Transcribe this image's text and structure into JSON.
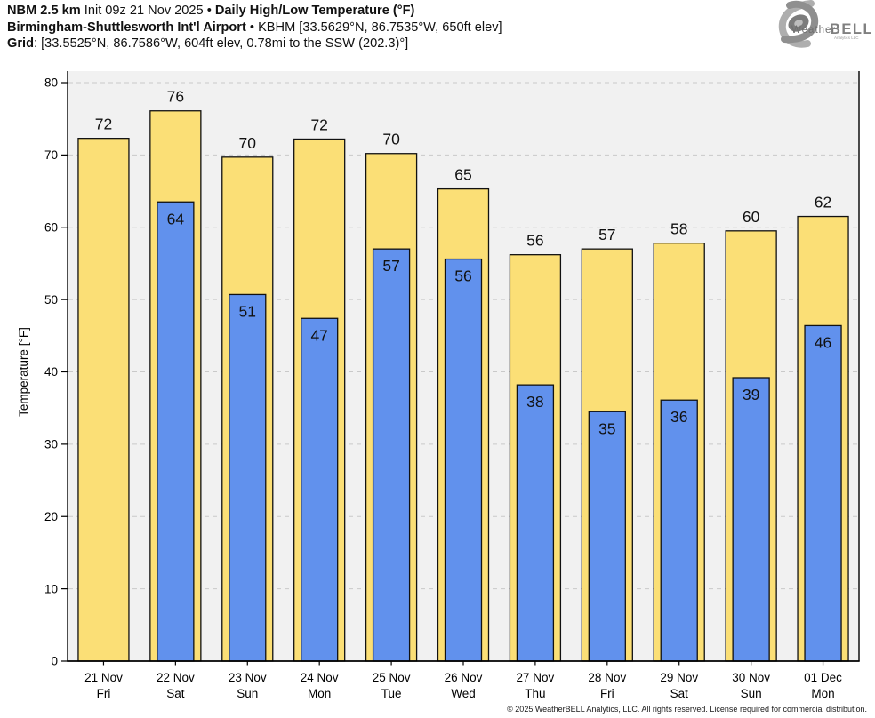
{
  "header": {
    "line1": {
      "model": "NBM 2.5 km",
      "init": " Init 09z 21 Nov 2025 • ",
      "title": "Daily High/Low Temperature (°F)"
    },
    "line2": {
      "station": "Birmingham-Shuttlesworth Int'l Airport",
      "sep": " • ",
      "details": "KBHM [33.5629°N, 86.7535°W, 650ft elev]"
    },
    "line3": {
      "label": "Grid",
      "details": ": [33.5525°N, 86.7586°W, 604ft elev, 0.78mi to the SSW (202.3)°]"
    }
  },
  "logo": {
    "weather": "Weather",
    "bell": "BELL",
    "sub": "Analytics LLC"
  },
  "footer": {
    "copyright": "© 2025 WeatherBELL Analytics, LLC. All rights reserved. License required for commercial distribution."
  },
  "chart_data": {
    "type": "bar",
    "title": "Daily High/Low Temperature (°F)",
    "xlabel": "",
    "ylabel": "Temperature [°F]",
    "ylim": [
      0,
      80
    ],
    "yticks": [
      0,
      10,
      20,
      30,
      40,
      50,
      60,
      70,
      80
    ],
    "grid": "horizontal-dashed",
    "legend": "none",
    "plot_bg": "#f1f1f1",
    "grid_color": "#c9c9c9",
    "bar_edge_color": "#111111",
    "categories": [
      {
        "date": "21 Nov",
        "day": "Fri"
      },
      {
        "date": "22 Nov",
        "day": "Sat"
      },
      {
        "date": "23 Nov",
        "day": "Sun"
      },
      {
        "date": "24 Nov",
        "day": "Mon"
      },
      {
        "date": "25 Nov",
        "day": "Tue"
      },
      {
        "date": "26 Nov",
        "day": "Wed"
      },
      {
        "date": "27 Nov",
        "day": "Thu"
      },
      {
        "date": "28 Nov",
        "day": "Fri"
      },
      {
        "date": "29 Nov",
        "day": "Sat"
      },
      {
        "date": "30 Nov",
        "day": "Sun"
      },
      {
        "date": "01 Dec",
        "day": "Mon"
      }
    ],
    "series": [
      {
        "name": "Daily High",
        "color": "#FBDF76",
        "labels": [
          72,
          76,
          70,
          72,
          70,
          65,
          56,
          57,
          58,
          60,
          62
        ],
        "values": [
          72.3,
          76.1,
          69.7,
          72.2,
          70.2,
          65.3,
          56.2,
          57.0,
          57.8,
          59.5,
          61.5
        ]
      },
      {
        "name": "Daily Low",
        "color": "#6191ED",
        "labels": [
          null,
          64,
          51,
          47,
          57,
          56,
          38,
          35,
          36,
          39,
          46
        ],
        "values": [
          null,
          63.5,
          50.7,
          47.4,
          57.0,
          55.6,
          38.2,
          34.5,
          36.1,
          39.2,
          46.4
        ]
      }
    ]
  }
}
